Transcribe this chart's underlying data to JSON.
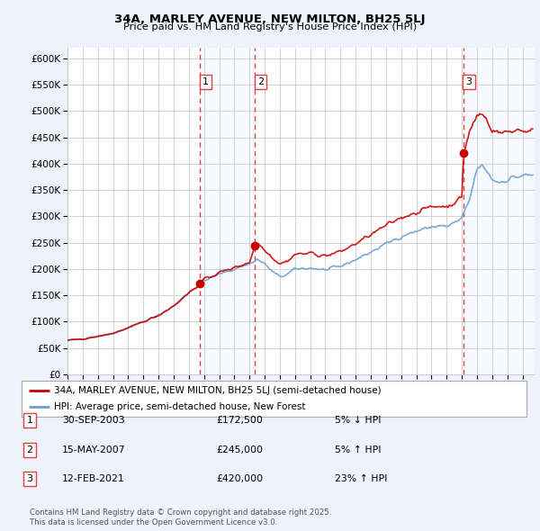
{
  "title": "34A, MARLEY AVENUE, NEW MILTON, BH25 5LJ",
  "subtitle": "Price paid vs. HM Land Registry's House Price Index (HPI)",
  "legend_line1": "34A, MARLEY AVENUE, NEW MILTON, BH25 5LJ (semi-detached house)",
  "legend_line2": "HPI: Average price, semi-detached house, New Forest",
  "footnote": "Contains HM Land Registry data © Crown copyright and database right 2025.\nThis data is licensed under the Open Government Licence v3.0.",
  "sale_points": [
    {
      "label": "1",
      "date": 2003.75,
      "price": 172500
    },
    {
      "label": "2",
      "date": 2007.37,
      "price": 245000
    },
    {
      "label": "3",
      "date": 2021.12,
      "price": 420000
    }
  ],
  "sale_annotations": [
    {
      "num": "1",
      "date_str": "30-SEP-2003",
      "price_str": "£172,500",
      "pct_str": "5% ↓ HPI"
    },
    {
      "num": "2",
      "date_str": "15-MAY-2007",
      "price_str": "£245,000",
      "pct_str": "5% ↑ HPI"
    },
    {
      "num": "3",
      "date_str": "12-FEB-2021",
      "price_str": "£420,000",
      "pct_str": "23% ↑ HPI"
    }
  ],
  "vline_dates": [
    2003.75,
    2007.37,
    2021.12
  ],
  "ylim": [
    0,
    620000
  ],
  "yticks": [
    0,
    50000,
    100000,
    150000,
    200000,
    250000,
    300000,
    350000,
    400000,
    450000,
    500000,
    550000,
    600000
  ],
  "ytick_labels": [
    "£0",
    "£50K",
    "£100K",
    "£150K",
    "£200K",
    "£250K",
    "£300K",
    "£350K",
    "£400K",
    "£450K",
    "£500K",
    "£550K",
    "£600K"
  ],
  "xmin": 1995.0,
  "xmax": 2025.8,
  "background_color": "#eef2fb",
  "plot_bg_color": "#ffffff",
  "grid_color": "#cccccc",
  "hpi_color": "#6ca0d4",
  "price_color": "#cc0000",
  "vline_color": "#e04040",
  "shade_color": "#dce8f8"
}
